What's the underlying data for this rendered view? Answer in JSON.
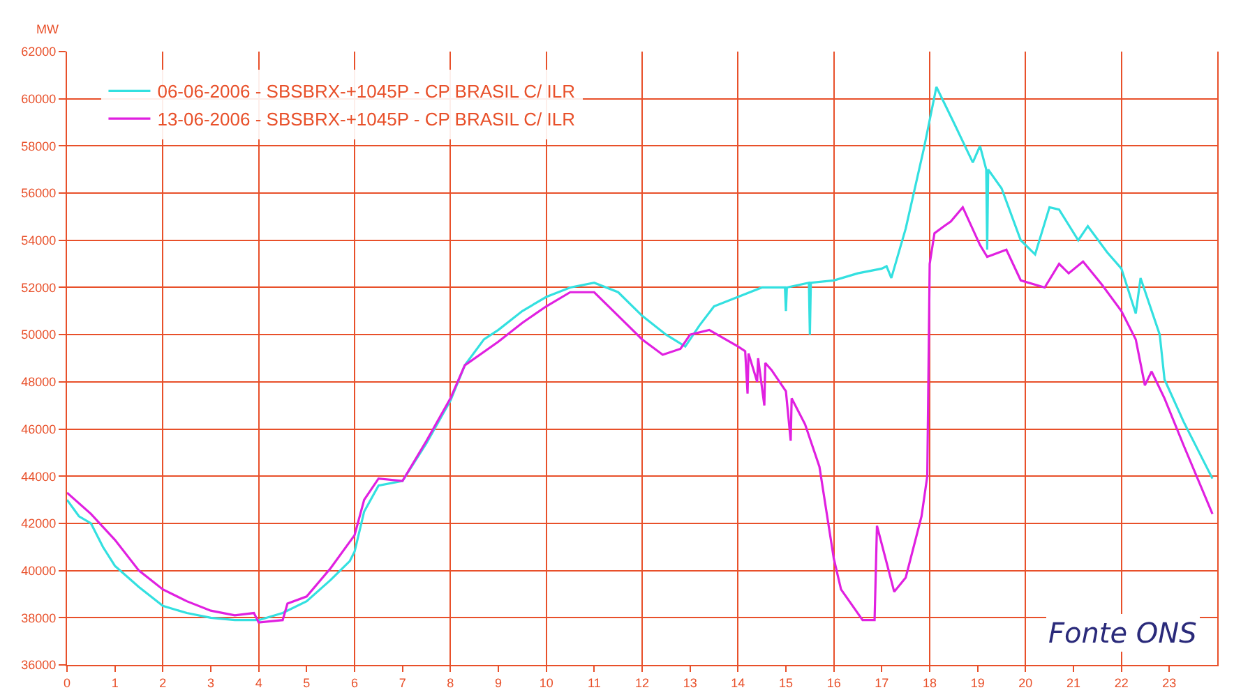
{
  "chart_data": {
    "type": "line",
    "ylabel": "MW",
    "annotations": [
      "Fonte ONS"
    ],
    "legend": "top left",
    "grid": true,
    "marker": "none",
    "line_style": "solid",
    "xlim": [
      0,
      24
    ],
    "xticks": [
      0,
      1,
      2,
      3,
      4,
      5,
      6,
      7,
      8,
      9,
      10,
      11,
      12,
      13,
      14,
      15,
      16,
      17,
      18,
      19,
      20,
      21,
      22,
      23
    ],
    "ylim": [
      36000,
      62000
    ],
    "yticks": [
      36000,
      38000,
      40000,
      42000,
      44000,
      46000,
      48000,
      50000,
      52000,
      54000,
      56000,
      58000,
      60000,
      62000
    ],
    "series": [
      {
        "name": "06-06-2006 - SBSBRX-+1045P - CP BRASIL C/ ILR",
        "color": "#33e0e0",
        "x": [
          0,
          0.25,
          0.5,
          0.75,
          1,
          1.5,
          2,
          2.5,
          3,
          3.5,
          4,
          4.5,
          5,
          5.5,
          5.9,
          6,
          6.2,
          6.5,
          7,
          7.5,
          8,
          8.3,
          8.7,
          9,
          9.5,
          10,
          10.5,
          11,
          11.5,
          12,
          12.5,
          12.9,
          13.2,
          13.5,
          14,
          14.5,
          14.98,
          15,
          15.02,
          15.48,
          15.5,
          15.52,
          16,
          16.5,
          17,
          17.1,
          17.2,
          17.5,
          17.88,
          18.14,
          18.5,
          18.9,
          19.05,
          19.18,
          19.2,
          19.22,
          19.5,
          19.9,
          20.2,
          20.5,
          20.7,
          21.1,
          21.3,
          21.7,
          22,
          22.3,
          22.4,
          22.8,
          22.9,
          23.3,
          23.9
        ],
        "values": [
          43000,
          42300,
          42000,
          41000,
          40200,
          39300,
          38500,
          38200,
          38000,
          37900,
          37900,
          38200,
          38700,
          39600,
          40400,
          40800,
          42500,
          43600,
          43800,
          45400,
          47200,
          48700,
          49800,
          50200,
          51000,
          51600,
          52000,
          52200,
          51800,
          50800,
          50000,
          49500,
          50400,
          51200,
          51600,
          52000,
          52000,
          51000,
          52000,
          52200,
          50000,
          52200,
          52300,
          52600,
          52800,
          52900,
          52400,
          54500,
          57900,
          60500,
          59000,
          57300,
          58000,
          57000,
          53600,
          57000,
          56200,
          54000,
          53400,
          55400,
          55300,
          54000,
          54600,
          53500,
          52800,
          50900,
          52400,
          50000,
          48100,
          46300,
          43900
        ]
      },
      {
        "name": "13-06-2006 - SBSBRX-+1045P - CP BRASIL C/ ILR",
        "color": "#e020e0",
        "x": [
          0,
          0.5,
          1,
          1.5,
          2,
          2.5,
          3,
          3.5,
          3.9,
          4,
          4.5,
          4.6,
          5,
          5.5,
          6,
          6.2,
          6.5,
          7,
          7.5,
          8,
          8.3,
          9,
          9.5,
          10,
          10.5,
          11,
          11.5,
          12,
          12.43,
          12.8,
          13,
          13.4,
          14,
          14.15,
          14.2,
          14.22,
          14.4,
          14.42,
          14.55,
          14.57,
          14.7,
          15,
          15.1,
          15.12,
          15.4,
          15.7,
          16,
          16.15,
          16.6,
          16.85,
          16.9,
          17.26,
          17.5,
          17.83,
          17.95,
          18,
          18.1,
          18.3,
          18.44,
          18.69,
          19.05,
          19.2,
          19.6,
          19.9,
          20.4,
          20.7,
          20.9,
          21.2,
          21.6,
          22,
          22.3,
          22.49,
          22.63,
          22.9,
          23.3,
          23.9
        ],
        "values": [
          43300,
          42400,
          41300,
          40000,
          39200,
          38700,
          38300,
          38100,
          38200,
          37800,
          37900,
          38600,
          38900,
          40100,
          41500,
          43000,
          43900,
          43800,
          45500,
          47300,
          48700,
          49700,
          50500,
          51200,
          51800,
          51800,
          50800,
          49800,
          49150,
          49400,
          50000,
          50200,
          49500,
          49300,
          47500,
          49200,
          48000,
          49000,
          47000,
          48800,
          48500,
          47600,
          45500,
          47300,
          46200,
          44400,
          40500,
          39200,
          37900,
          37900,
          41900,
          39100,
          39700,
          42300,
          44000,
          53000,
          54300,
          54600,
          54800,
          55400,
          53800,
          53300,
          53600,
          52300,
          52000,
          53000,
          52600,
          53100,
          52100,
          51000,
          49800,
          47850,
          48440,
          47300,
          45300,
          42400
        ]
      }
    ]
  }
}
